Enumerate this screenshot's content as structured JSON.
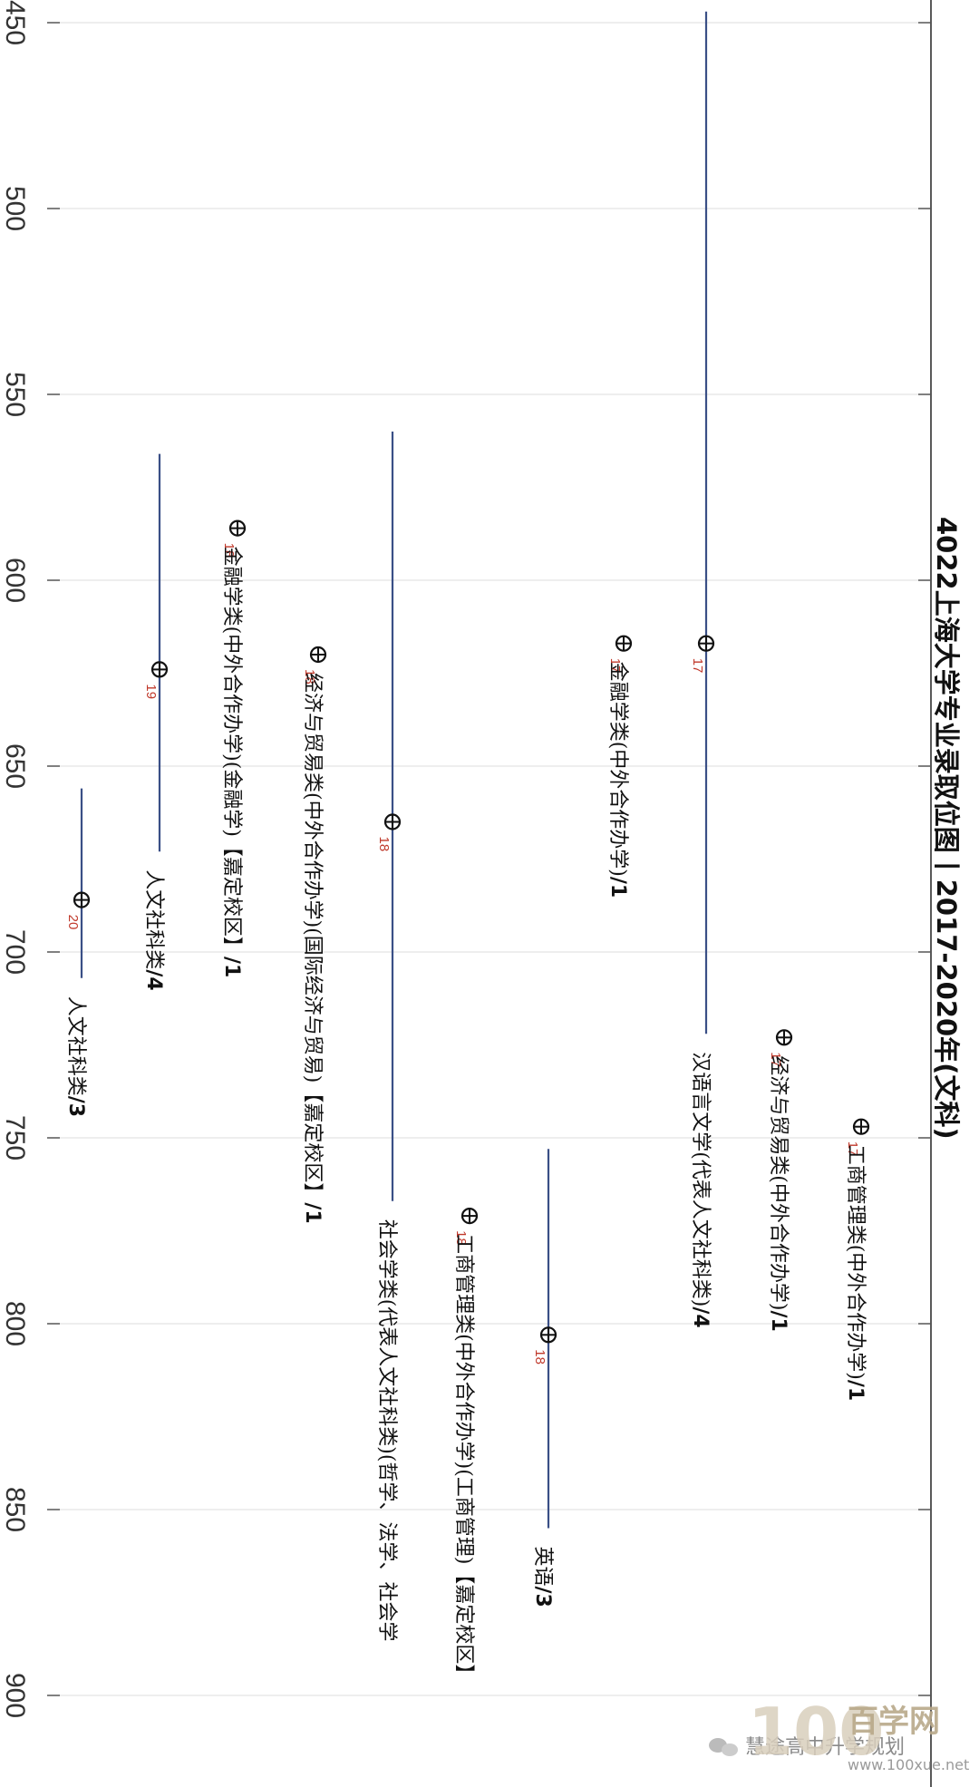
{
  "chart_data": {
    "type": "scatter",
    "title": "4022上海大学专业录取位图丨2017-2020年(文科)",
    "axis": {
      "label": "",
      "range": [
        450,
        925
      ],
      "ticks": [
        450,
        500,
        550,
        600,
        650,
        700,
        750,
        800,
        850,
        900
      ]
    },
    "grid": true,
    "orientation": "rotated-90-clockwise",
    "colors": {
      "range_line": "#3a4f86",
      "year": "#c0392b",
      "grid": "#dddddd",
      "text": "#111111"
    },
    "series": [
      {
        "label": "工商管理类(中外合作办学)",
        "count": "/1",
        "year": "17",
        "value": 747,
        "range": null
      },
      {
        "label": "经济与贸易类(中外合作办学)",
        "count": "/1",
        "year": "17",
        "value": 723,
        "range": null
      },
      {
        "label": "汉语言文学(代表人文社科类)",
        "count": "/4",
        "year": "17",
        "value": 617,
        "range": [
          447,
          722
        ]
      },
      {
        "label": "金融学类(中外合作办学)",
        "count": "/1",
        "year": "17",
        "value": 617,
        "range": null
      },
      {
        "label": "英语",
        "count": "/3",
        "year": "18",
        "value": 803,
        "range": [
          753,
          855
        ]
      },
      {
        "label": "工商管理类(中外合作办学)(工商管理)【嘉定校区】",
        "count": "",
        "year": "18",
        "value": 771,
        "range": null
      },
      {
        "label": "社会学类(代表人文社科类)(哲学、法学、社会学",
        "count": "",
        "year": "18",
        "value": 665,
        "range": [
          560,
          767
        ]
      },
      {
        "label": "经济与贸易类(中外合作办学)(国际经济与贸易)【嘉定校区】",
        "count": "/1",
        "year": "18",
        "value": 620,
        "range": null
      },
      {
        "label": "金融学类(中外合作办学)(金融学)【嘉定校区】",
        "count": "/1",
        "year": "18",
        "value": 586,
        "range": null
      },
      {
        "label": "人文社科类",
        "count": "/4",
        "year": "19",
        "value": 624,
        "range": [
          566,
          673
        ]
      },
      {
        "label": "人文社科类",
        "count": "/3",
        "year": "20",
        "value": 686,
        "range": [
          656,
          707
        ]
      }
    ]
  },
  "watermark": {
    "logo_digits": "100",
    "brand": "百学网",
    "url": "www.100xue.net",
    "account": "慧途高中升学规划"
  }
}
